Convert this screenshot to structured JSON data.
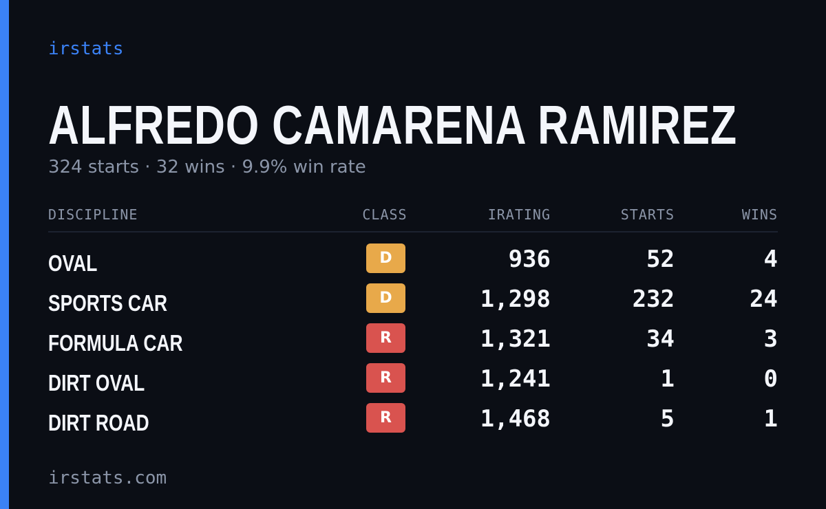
{
  "brand": "irstats",
  "driver": {
    "name": "ALFREDO CAMARENA RAMIREZ",
    "summary": "324 starts · 32 wins · 9.9% win rate"
  },
  "table": {
    "headers": {
      "discipline": "DISCIPLINE",
      "class": "CLASS",
      "irating": "IRATING",
      "starts": "STARTS",
      "wins": "WINS"
    },
    "rows": [
      {
        "discipline": "OVAL",
        "class": "D",
        "class_color": "#e8a94a",
        "irating": "936",
        "starts": "52",
        "wins": "4"
      },
      {
        "discipline": "SPORTS CAR",
        "class": "D",
        "class_color": "#e8a94a",
        "irating": "1,298",
        "starts": "232",
        "wins": "24"
      },
      {
        "discipline": "FORMULA CAR",
        "class": "R",
        "class_color": "#d9534f",
        "irating": "1,321",
        "starts": "34",
        "wins": "3"
      },
      {
        "discipline": "DIRT OVAL",
        "class": "R",
        "class_color": "#d9534f",
        "irating": "1,241",
        "starts": "1",
        "wins": "0"
      },
      {
        "discipline": "DIRT ROAD",
        "class": "R",
        "class_color": "#d9534f",
        "irating": "1,468",
        "starts": "5",
        "wins": "1"
      }
    ]
  },
  "footer": "irstats.com",
  "colors": {
    "background": "#0b0e15",
    "accent": "#3b82f6",
    "text": "#f4f6fb",
    "muted": "#8b95a8"
  }
}
